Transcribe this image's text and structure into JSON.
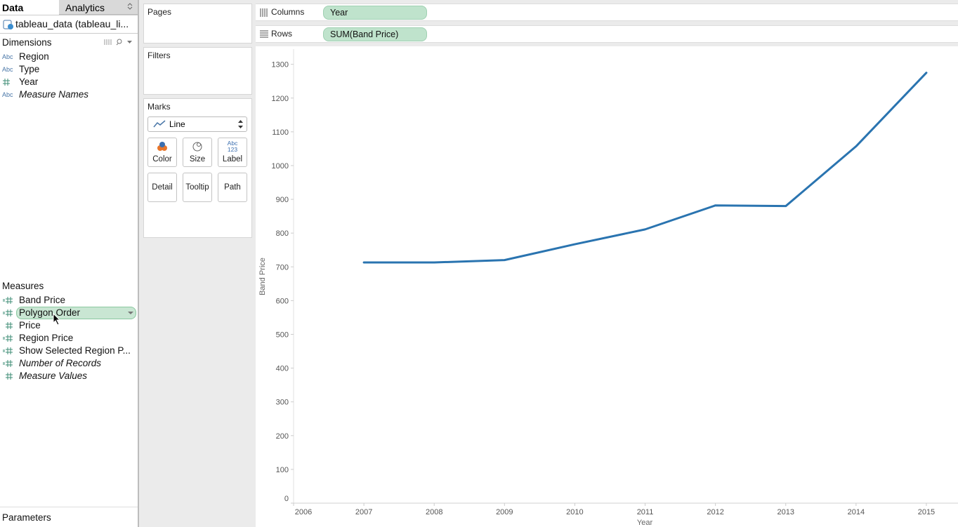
{
  "tabs": [
    "Data",
    "Analytics"
  ],
  "data_source": "tableau_data (tableau_li...",
  "dimensions": {
    "title": "Dimensions",
    "items": [
      {
        "icon": "Abc",
        "label": "Region"
      },
      {
        "icon": "Abc",
        "label": "Type"
      },
      {
        "label": "Year"
      },
      {
        "icon": "Abc",
        "label": "Measure Names"
      }
    ]
  },
  "measures": {
    "title": "Measures",
    "items": [
      {
        "label": "Band Price"
      },
      {
        "label": "Polygon Order"
      },
      {
        "label": "Price"
      },
      {
        "label": "Region Price"
      },
      {
        "label": "Show Selected Region P..."
      },
      {
        "label": "Number of Records"
      },
      {
        "label": "Measure Values"
      }
    ]
  },
  "parameters": "Parameters",
  "cards": {
    "pages": "Pages",
    "filters": "Filters",
    "marks": {
      "title": "Marks",
      "mark_type": "Line",
      "buttons": [
        "Color",
        "Size",
        "Label",
        "Detail",
        "Tooltip",
        "Path"
      ],
      "label_icon": [
        "Abc",
        "123"
      ]
    }
  },
  "shelves": [
    {
      "label": "Columns",
      "pill": "Year"
    },
    {
      "label": "Rows",
      "pill": "SUM(Band Price)"
    }
  ],
  "chart_data": {
    "type": "line",
    "x_label": "Year",
    "y_label": "Band Price",
    "x": [
      2007,
      2008,
      2009,
      2010,
      2011,
      2012,
      2013,
      2014,
      2015
    ],
    "values": [
      713,
      713,
      720,
      767,
      811,
      882,
      880,
      1057,
      1275
    ],
    "color": "#2a74b0",
    "xlim": [
      2006,
      2015.45
    ],
    "xticks": [
      2006,
      2007,
      2008,
      2009,
      2010,
      2011,
      2012,
      2013,
      2014,
      2015
    ],
    "ylim": [
      0,
      1345
    ],
    "yticks": [
      0,
      100,
      200,
      300,
      400,
      500,
      600,
      700,
      800,
      900,
      1000,
      1100,
      1200,
      1300
    ],
    "grid": false
  }
}
